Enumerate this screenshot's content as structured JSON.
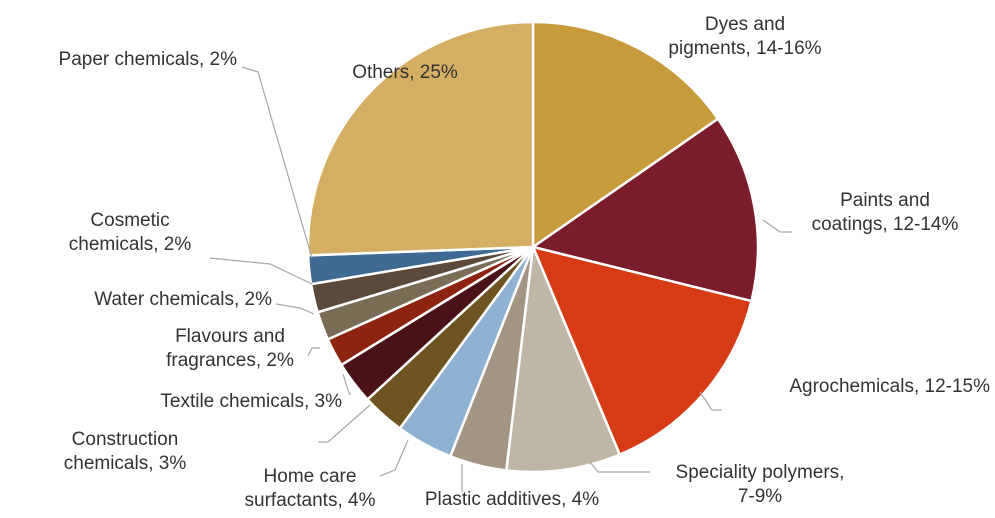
{
  "chart_data": {
    "type": "pie",
    "start_angle_deg": 0,
    "direction": "clockwise",
    "legend": "none",
    "slices": [
      {
        "label_lines": [
          "Dyes and",
          "pigments, 14-16%"
        ],
        "value": 15,
        "color": "#C79A3A"
      },
      {
        "label_lines": [
          "Paints and",
          "coatings, 12-14%"
        ],
        "value": 13.2,
        "color": "#7B1C2A"
      },
      {
        "label_lines": [
          "Agrochemicals, 12-15%"
        ],
        "value": 14.5,
        "color": "#D63B16"
      },
      {
        "label_lines": [
          "Speciality polymers,",
          "7-9%"
        ],
        "value": 8,
        "color": "#BFB6A6"
      },
      {
        "label_lines": [
          "Plastic additives, 4%"
        ],
        "value": 4,
        "color": "#A49482"
      },
      {
        "label_lines": [
          "Home care",
          "surfactants, 4%"
        ],
        "value": 4,
        "color": "#8FB2D2"
      },
      {
        "label_lines": [
          "Construction",
          "chemicals, 3%"
        ],
        "value": 3,
        "color": "#6E5420"
      },
      {
        "label_lines": [
          "Textile chemicals, 3%"
        ],
        "value": 3,
        "color": "#4A1117"
      },
      {
        "label_lines": [
          "Flavours and",
          "fragrances, 2%"
        ],
        "value": 2,
        "color": "#8E2410"
      },
      {
        "label_lines": [
          "Water chemicals, 2%"
        ],
        "value": 2,
        "color": "#7A6C55"
      },
      {
        "label_lines": [
          "Cosmetic",
          "chemicals, 2%"
        ],
        "value": 2,
        "color": "#5B4A3A"
      },
      {
        "label_lines": [
          "Paper chemicals, 2%"
        ],
        "value": 2,
        "color": "#3F6A94"
      },
      {
        "label_lines": [
          "Others, 25%"
        ],
        "value": 25,
        "color": "#D4AE62"
      }
    ]
  }
}
